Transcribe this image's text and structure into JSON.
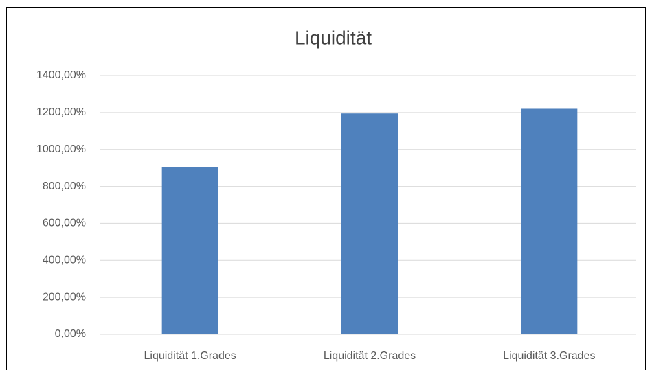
{
  "chart_data": {
    "type": "bar",
    "title": "Liquidität",
    "categories": [
      "Liquidität 1.Grades",
      "Liquidität 2.Grades",
      "Liquidität 3.Grades"
    ],
    "values": [
      905,
      1195,
      1220
    ],
    "color": "#4f81bd",
    "ylim": [
      0,
      1400
    ],
    "yticks": [
      {
        "value": 0,
        "label": "0,00%"
      },
      {
        "value": 200,
        "label": "200,00%"
      },
      {
        "value": 400,
        "label": "400,00%"
      },
      {
        "value": 600,
        "label": "600,00%"
      },
      {
        "value": 800,
        "label": "800,00%"
      },
      {
        "value": 1000,
        "label": "1000,00%"
      },
      {
        "value": 1200,
        "label": "1200,00%"
      },
      {
        "value": 1400,
        "label": "1400,00%"
      }
    ],
    "grid": true
  }
}
